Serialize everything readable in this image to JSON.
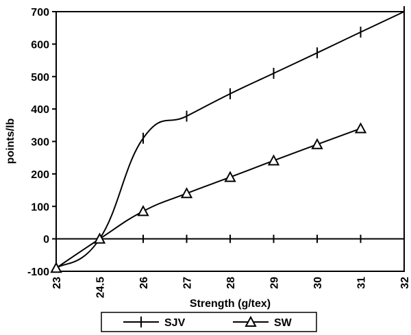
{
  "chart_data": {
    "type": "line",
    "title": "",
    "xlabel": "Strength (g/tex)",
    "ylabel": "points/lb",
    "x_ticks": [
      "23",
      "24.5",
      "26",
      "27",
      "28",
      "29",
      "30",
      "31",
      "32"
    ],
    "y_ticks": [
      "-100",
      "0",
      "100",
      "200",
      "300",
      "400",
      "500",
      "600",
      "700"
    ],
    "ylim": [
      -100,
      700
    ],
    "grid": false,
    "legend": "bottom",
    "series": [
      {
        "name": "SJV",
        "marker": "plus",
        "color": "#000000",
        "points": [
          {
            "x": "23",
            "y": -90
          },
          {
            "x": "24.5",
            "y": 0
          },
          {
            "x": "26",
            "y": 310
          },
          {
            "x": "27",
            "y": 378
          },
          {
            "x": "28",
            "y": 447
          },
          {
            "x": "29",
            "y": 510
          },
          {
            "x": "30",
            "y": 573
          },
          {
            "x": "31",
            "y": 637
          },
          {
            "x": "32",
            "y": 700
          }
        ]
      },
      {
        "name": "SW",
        "marker": "triangle",
        "color": "#000000",
        "points": [
          {
            "x": "23",
            "y": -90
          },
          {
            "x": "24.5",
            "y": 0
          },
          {
            "x": "26",
            "y": 85
          },
          {
            "x": "27",
            "y": 140
          },
          {
            "x": "28",
            "y": 190
          },
          {
            "x": "29",
            "y": 241
          },
          {
            "x": "30",
            "y": 291
          },
          {
            "x": "31",
            "y": 340
          }
        ]
      }
    ]
  }
}
